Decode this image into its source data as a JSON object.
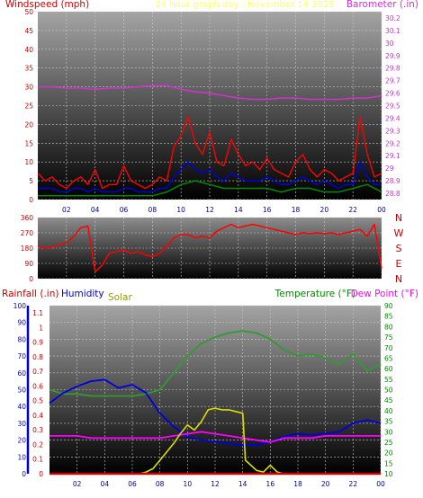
{
  "chart_data": [
    {
      "type": "line",
      "title": "24 hour graph day : November 14 2025",
      "ylabel_left": "Windspeed (mph)",
      "ylabel_right": "Barometer (.in)",
      "x_ticks": [
        "02",
        "04",
        "06",
        "08",
        "10",
        "12",
        "14",
        "16",
        "18",
        "20",
        "22",
        "00"
      ],
      "y_left_ticks": [
        "0",
        "5",
        "10",
        "15",
        "20",
        "25",
        "30",
        "35",
        "40",
        "45",
        "50"
      ],
      "y_left_range": [
        0,
        50
      ],
      "y_right_ticks": [
        "28.8",
        "28.9",
        "29",
        "29.1",
        "29.2",
        "29.3",
        "29.4",
        "29.5",
        "29.6",
        "29.7",
        "29.8",
        "29.9",
        "30",
        "30.1",
        "30.2"
      ],
      "y_right_range": [
        28.75,
        30.25
      ],
      "grid": true,
      "series": [
        {
          "key": "gust",
          "color": "#ff0000",
          "x": [
            0,
            0.5,
            1,
            1.5,
            2,
            2.5,
            3,
            3.5,
            4,
            4.5,
            5,
            5.5,
            6,
            6.5,
            7,
            7.5,
            8,
            8.5,
            9,
            9.5,
            10,
            10.5,
            11,
            11.5,
            12,
            12.5,
            13,
            13.5,
            14,
            14.5,
            15,
            15.5,
            16,
            16.5,
            17,
            17.5,
            18,
            18.5,
            19,
            19.5,
            20,
            20.5,
            21,
            21.5,
            22,
            22.5,
            23,
            23.5,
            24
          ],
          "values": [
            7,
            5,
            6,
            4,
            3,
            5,
            6,
            4,
            8,
            3,
            4,
            4,
            9,
            5,
            4,
            3,
            4,
            6,
            5,
            14,
            17,
            22,
            15,
            12,
            18,
            10,
            9,
            16,
            12,
            9,
            10,
            8,
            11,
            8,
            7,
            6,
            10,
            12,
            8,
            6,
            8,
            7,
            5,
            6,
            7,
            22,
            12,
            6,
            7
          ]
        },
        {
          "key": "wind",
          "color": "#0000dd",
          "x": [
            0,
            0.5,
            1,
            1.5,
            2,
            2.5,
            3,
            3.5,
            4,
            4.5,
            5,
            5.5,
            6,
            6.5,
            7,
            7.5,
            8,
            8.5,
            9,
            9.5,
            10,
            10.5,
            11,
            11.5,
            12,
            12.5,
            13,
            13.5,
            14,
            14.5,
            15,
            15.5,
            16,
            16.5,
            17,
            17.5,
            18,
            18.5,
            19,
            19.5,
            20,
            20.5,
            21,
            21.5,
            22,
            22.5,
            23,
            23.5,
            24
          ],
          "values": [
            3,
            3,
            3,
            2,
            2,
            3,
            3,
            2,
            3,
            2,
            2,
            2,
            3,
            3,
            2,
            2,
            2,
            3,
            3,
            6,
            8,
            10,
            8,
            7,
            8,
            6,
            5,
            7,
            6,
            5,
            5,
            5,
            6,
            5,
            4,
            4,
            5,
            6,
            5,
            4,
            5,
            4,
            3,
            4,
            4,
            10,
            6,
            4,
            4
          ]
        },
        {
          "key": "avg",
          "color": "#008800",
          "x": [
            0,
            1,
            2,
            3,
            4,
            5,
            6,
            7,
            8,
            9,
            10,
            11,
            12,
            13,
            14,
            15,
            16,
            17,
            18,
            19,
            20,
            21,
            22,
            23,
            24
          ],
          "values": [
            1,
            1,
            1,
            1,
            1,
            1,
            1,
            1,
            1,
            2,
            4,
            5,
            4,
            3,
            3,
            3,
            3,
            2,
            3,
            3,
            2,
            2,
            3,
            4,
            2
          ]
        },
        {
          "key": "barometer",
          "color": "#cc33cc",
          "x": [
            0,
            1,
            2,
            3,
            4,
            5,
            6,
            7,
            8,
            9,
            10,
            11,
            12,
            13,
            14,
            15,
            16,
            17,
            18,
            19,
            20,
            21,
            22,
            23,
            24
          ],
          "values": [
            29.65,
            29.65,
            29.64,
            29.64,
            29.63,
            29.64,
            29.64,
            29.65,
            29.66,
            29.66,
            29.63,
            29.61,
            29.6,
            29.58,
            29.56,
            29.55,
            29.55,
            29.56,
            29.56,
            29.55,
            29.55,
            29.55,
            29.56,
            29.56,
            29.58
          ]
        }
      ]
    },
    {
      "type": "line",
      "y_left_ticks": [
        "0",
        "90",
        "180",
        "270",
        "360"
      ],
      "y_left_range": [
        0,
        360
      ],
      "y_right_ticks": [
        "N",
        "W",
        "S",
        "E",
        "N"
      ],
      "x_ticks": [
        "02",
        "04",
        "06",
        "08",
        "10",
        "12",
        "14",
        "16",
        "18",
        "20",
        "22",
        "00"
      ],
      "grid": true,
      "series": [
        {
          "key": "direction",
          "color": "#ff0000",
          "x": [
            0,
            0.5,
            1,
            1.5,
            2,
            2.5,
            3,
            3.5,
            4,
            4.5,
            5,
            5.5,
            6,
            6.5,
            7,
            7.5,
            8,
            8.5,
            9,
            9.5,
            10,
            10.5,
            11,
            11.5,
            12,
            12.5,
            13,
            13.5,
            14,
            14.5,
            15,
            15.5,
            16,
            16.5,
            17,
            17.5,
            18,
            18.5,
            19,
            19.5,
            20,
            20.5,
            21,
            21.5,
            22,
            22.5,
            23,
            23.5,
            24
          ],
          "values": [
            190,
            180,
            185,
            200,
            210,
            250,
            300,
            310,
            40,
            80,
            150,
            160,
            170,
            150,
            160,
            140,
            130,
            150,
            190,
            240,
            260,
            260,
            240,
            250,
            240,
            280,
            300,
            320,
            300,
            310,
            320,
            310,
            300,
            290,
            280,
            270,
            260,
            270,
            265,
            270,
            265,
            270,
            260,
            270,
            280,
            290,
            250,
            320,
            60
          ]
        }
      ]
    },
    {
      "type": "line",
      "ylabel_left_1": "Rainfall (.in)",
      "ylabel_left_2": "Humidity",
      "ylabel_left_3": "Solar",
      "ylabel_right_1": "Temperature (°F)",
      "ylabel_right_2": "Dew Point (°F)",
      "y_rain_ticks": [
        "0",
        "0.1",
        "0.2",
        "0.3",
        "0.4",
        "0.5",
        "0.6",
        "0.7",
        "0.8",
        "0.9",
        "1",
        "1.1"
      ],
      "y_rain_range": [
        0,
        1.15
      ],
      "y_humidity_ticks": [
        "0",
        "10",
        "20",
        "30",
        "40",
        "50",
        "60",
        "70",
        "80",
        "90",
        "100"
      ],
      "y_humidity_range": [
        0,
        100
      ],
      "y_temp_ticks": [
        "10",
        "15",
        "20",
        "25",
        "30",
        "35",
        "40",
        "45",
        "50",
        "55",
        "60",
        "65",
        "70",
        "75",
        "80",
        "85",
        "90"
      ],
      "y_temp_range": [
        10,
        90
      ],
      "x_ticks": [
        "02",
        "04",
        "06",
        "08",
        "10",
        "12",
        "14",
        "16",
        "18",
        "20",
        "22",
        "00"
      ],
      "grid": true,
      "series": [
        {
          "key": "temperature",
          "color": "#339933",
          "x": [
            0,
            1,
            2,
            3,
            4,
            5,
            6,
            7,
            8,
            9,
            10,
            11,
            12,
            13,
            14,
            15,
            16,
            17,
            18,
            19,
            20,
            21,
            22,
            23,
            24
          ],
          "values": [
            50,
            48,
            48,
            47,
            47,
            47,
            47,
            48,
            50,
            58,
            66,
            72,
            75,
            77,
            78,
            77,
            74,
            69,
            66,
            67,
            65,
            62,
            67,
            59,
            62
          ]
        },
        {
          "key": "humidity",
          "color": "#0000dd",
          "x": [
            0,
            1,
            2,
            3,
            4,
            5,
            6,
            7,
            8,
            9,
            10,
            11,
            12,
            13,
            14,
            15,
            16,
            17,
            18,
            19,
            20,
            21,
            22,
            23,
            24
          ],
          "values": [
            42,
            48,
            52,
            55,
            56,
            51,
            53,
            48,
            36,
            28,
            22,
            20,
            19,
            18,
            17,
            17,
            19,
            22,
            24,
            23,
            24,
            25,
            30,
            32,
            30
          ]
        },
        {
          "key": "dewpoint",
          "color": "#ff00ff",
          "x": [
            0,
            1,
            2,
            3,
            4,
            5,
            6,
            7,
            8,
            9,
            10,
            11,
            12,
            13,
            14,
            15,
            16,
            17,
            18,
            19,
            20,
            21,
            22,
            23,
            24
          ],
          "values": [
            28,
            28,
            28,
            27,
            27,
            27,
            27,
            27,
            27,
            28,
            29,
            30,
            29,
            28,
            27,
            26,
            25,
            27,
            27,
            27,
            28,
            28,
            28,
            28,
            28
          ]
        },
        {
          "key": "solar",
          "color": "#dddd00",
          "x": [
            0,
            6.5,
            7,
            7.5,
            8,
            8.5,
            9,
            9.5,
            10,
            10.5,
            11,
            11.5,
            12,
            12.5,
            13,
            13.5,
            14,
            14.2,
            15,
            15.5,
            16,
            16.5,
            17,
            24
          ],
          "values": [
            0,
            0,
            1,
            3,
            8,
            13,
            18,
            24,
            29,
            26,
            31,
            38,
            39,
            38,
            38,
            37,
            36,
            8,
            2,
            1,
            5,
            1,
            0,
            0
          ]
        },
        {
          "key": "rainfall",
          "color": "#cc0000",
          "x": [
            0,
            24
          ],
          "values": [
            0,
            0
          ]
        }
      ]
    }
  ]
}
